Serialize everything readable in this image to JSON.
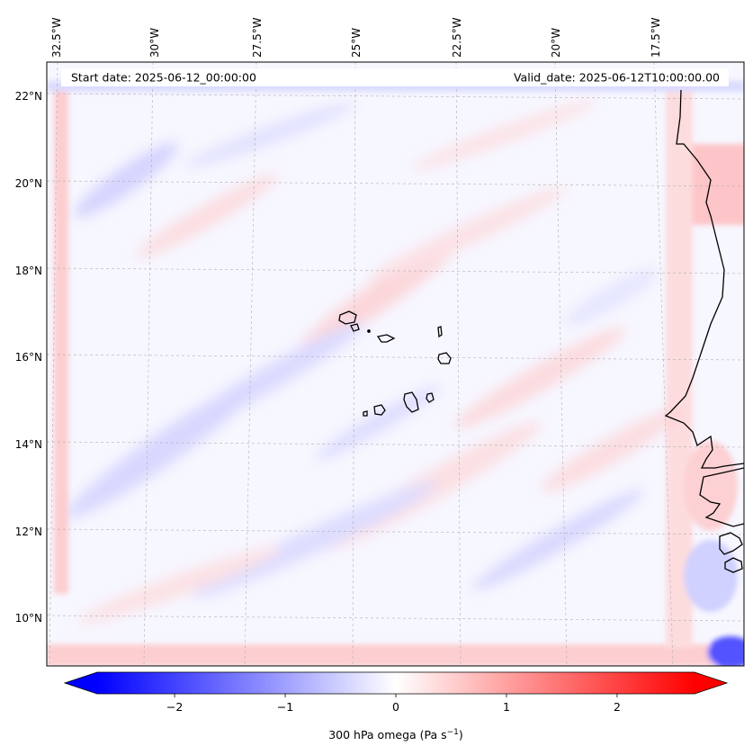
{
  "chart_data": {
    "type": "heatmap",
    "field": "300 hPa omega",
    "units": "Pa s^-1",
    "start_date_label": "Start date: 2025-06-12_00:00:00",
    "valid_date_label": "Valid_date: 2025-06-12T10:00:00.00",
    "lon_ticks": [
      "32.5°W",
      "30°W",
      "27.5°W",
      "25°W",
      "22.5°W",
      "20°W",
      "17.5°W"
    ],
    "lat_ticks": [
      "22°N",
      "20°N",
      "18°N",
      "16°N",
      "14°N",
      "12°N",
      "10°N"
    ],
    "lat_range": [
      8.9,
      22.8
    ],
    "lon_range": [
      -33.5,
      -15.0
    ],
    "colorbar": {
      "label": "300 hPa omega (Pa s",
      "label_exp": "−1",
      "label_close": ")",
      "vmin": -2.7,
      "vmax": 2.7,
      "ticks": [
        -2,
        -1,
        0,
        1,
        2
      ],
      "tick_labels": [
        "−2",
        "−1",
        "0",
        "1",
        "2"
      ],
      "extend": "both",
      "colormap": "bwr",
      "low_color": "#0000ff",
      "mid_color": "#ffffff",
      "high_color": "#ff0000"
    },
    "grid": "dashed-gray"
  }
}
